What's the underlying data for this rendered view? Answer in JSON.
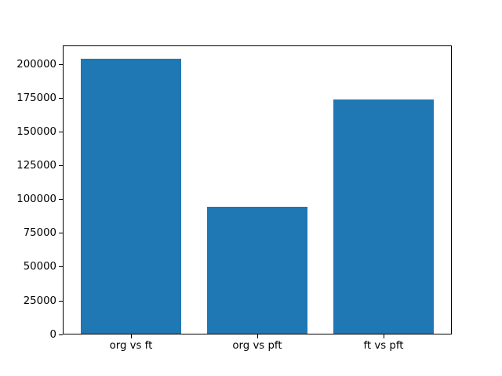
{
  "chart_data": {
    "type": "bar",
    "title": "",
    "xlabel": "",
    "ylabel": "",
    "categories": [
      "org vs ft",
      "org vs pft",
      "ft vs pft"
    ],
    "values": [
      204000,
      94800,
      173800
    ],
    "ylim": [
      0,
      214200
    ],
    "yticks": [
      0,
      25000,
      50000,
      75000,
      100000,
      125000,
      150000,
      175000,
      200000
    ],
    "xlim": [
      -0.54,
      2.54
    ],
    "bar_width": 0.8,
    "bar_color": "#1f77b4",
    "axis_color": "#000000",
    "background_color": "#ffffff",
    "grid": false,
    "legend": null
  }
}
